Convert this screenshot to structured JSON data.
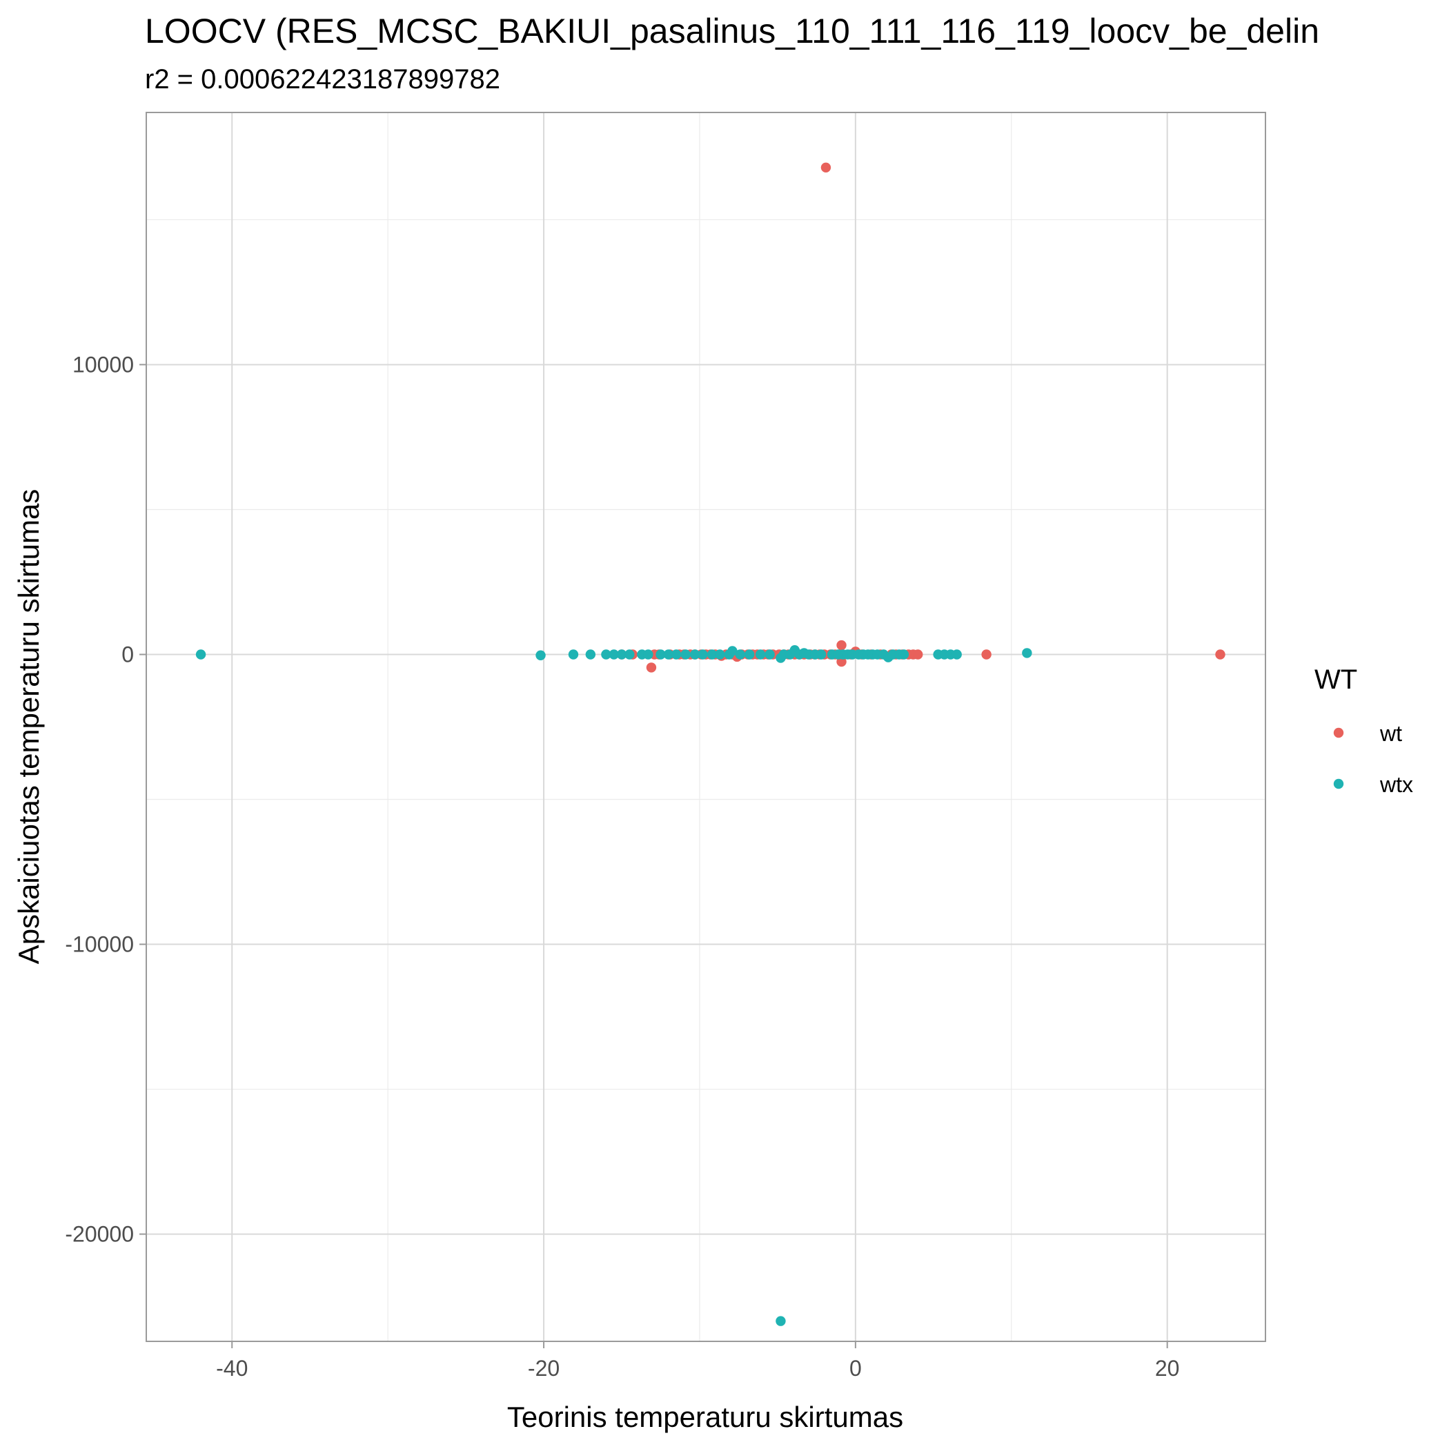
{
  "chart_data": {
    "type": "scatter",
    "title": "LOOCV (RES_MCSC_BAKIUI_pasalinus_110_111_116_119_loocv_be_delin",
    "subtitle": "r2 = 0.000622423187899782",
    "xlabel": "Teorinis temperaturu skirtumas",
    "ylabel": "Apskaiciuotas temperaturu skirtumas",
    "xlim": [
      -45.5,
      26.3
    ],
    "ylim": [
      -23700,
      18700
    ],
    "x_ticks": [
      -40,
      -20,
      0,
      20
    ],
    "y_ticks": [
      -20000,
      -10000,
      0,
      10000
    ],
    "x_tick_labels": [
      "-40",
      "-20",
      "0",
      "20"
    ],
    "y_tick_labels": [
      "-20000",
      "-10000",
      "0",
      "10000"
    ],
    "grid": true,
    "legend": {
      "title": "WT",
      "position": "right"
    },
    "series": [
      {
        "name": "wt",
        "color": "#E8615B",
        "points": [
          [
            -1.9,
            16800
          ],
          [
            23.4,
            0
          ],
          [
            8.4,
            0
          ],
          [
            -13.1,
            -450
          ],
          [
            -0.9,
            320
          ],
          [
            -0.9,
            -250
          ],
          [
            -15,
            0
          ],
          [
            -14.3,
            0
          ],
          [
            -12.9,
            0
          ],
          [
            -12.6,
            0
          ],
          [
            -11.9,
            0
          ],
          [
            -11.3,
            0
          ],
          [
            -11.0,
            0
          ],
          [
            -10.6,
            0
          ],
          [
            -10.3,
            0
          ],
          [
            -9.9,
            0
          ],
          [
            -9.6,
            0
          ],
          [
            -9.3,
            0
          ],
          [
            -9.0,
            0
          ],
          [
            -8.6,
            -50
          ],
          [
            -8.3,
            0
          ],
          [
            -7.9,
            0
          ],
          [
            -7.6,
            -80
          ],
          [
            -7.3,
            0
          ],
          [
            -6.9,
            0
          ],
          [
            -6.6,
            0
          ],
          [
            -6.3,
            0
          ],
          [
            -5.9,
            0
          ],
          [
            -5.6,
            0
          ],
          [
            -5.3,
            0
          ],
          [
            -4.9,
            0
          ],
          [
            -4.6,
            0
          ],
          [
            -4.3,
            0
          ],
          [
            -3.9,
            0
          ],
          [
            -3.6,
            0
          ],
          [
            -3.3,
            0
          ],
          [
            -2.9,
            0
          ],
          [
            -2.6,
            0
          ],
          [
            -2.3,
            0
          ],
          [
            -2.0,
            0
          ],
          [
            -1.6,
            0
          ],
          [
            -1.3,
            0
          ],
          [
            -0.3,
            0
          ],
          [
            0.0,
            100
          ],
          [
            0.4,
            0
          ],
          [
            1.0,
            0
          ],
          [
            1.6,
            0
          ],
          [
            2.3,
            0
          ],
          [
            2.6,
            0
          ],
          [
            3.0,
            0
          ],
          [
            3.4,
            0
          ],
          [
            3.7,
            0
          ],
          [
            4.0,
            0
          ]
        ]
      },
      {
        "name": "wtx",
        "color": "#1FB3B3",
        "points": [
          [
            -42,
            0
          ],
          [
            -4.8,
            -23000
          ],
          [
            11.0,
            50
          ],
          [
            -20.2,
            -30
          ],
          [
            -18.1,
            0
          ],
          [
            -17,
            0
          ],
          [
            -16,
            0
          ],
          [
            -15.5,
            0
          ],
          [
            -15.0,
            0
          ],
          [
            -14.5,
            0
          ],
          [
            -13.7,
            0
          ],
          [
            -13.3,
            0
          ],
          [
            -12.5,
            0
          ],
          [
            -12.0,
            0
          ],
          [
            -11.5,
            0
          ],
          [
            -10.9,
            0
          ],
          [
            -10.3,
            0
          ],
          [
            -9.8,
            0
          ],
          [
            -9.2,
            0
          ],
          [
            -8.7,
            0
          ],
          [
            -8.1,
            0
          ],
          [
            -7.9,
            120
          ],
          [
            -7.4,
            0
          ],
          [
            -6.8,
            0
          ],
          [
            -6.1,
            0
          ],
          [
            -5.5,
            0
          ],
          [
            -4.8,
            -120
          ],
          [
            -4.6,
            0
          ],
          [
            -4.2,
            0
          ],
          [
            -3.9,
            150
          ],
          [
            -3.6,
            0
          ],
          [
            -3.3,
            50
          ],
          [
            -3.0,
            0
          ],
          [
            -2.6,
            0
          ],
          [
            -2.2,
            0
          ],
          [
            -1.5,
            0
          ],
          [
            -1.1,
            0
          ],
          [
            -0.8,
            0
          ],
          [
            -0.5,
            0
          ],
          [
            -0.2,
            0
          ],
          [
            0.2,
            0
          ],
          [
            0.5,
            0
          ],
          [
            0.8,
            0
          ],
          [
            1.1,
            0
          ],
          [
            1.4,
            0
          ],
          [
            1.8,
            0
          ],
          [
            2.1,
            -100
          ],
          [
            2.4,
            0
          ],
          [
            2.8,
            0
          ],
          [
            3.1,
            0
          ],
          [
            5.3,
            0
          ],
          [
            5.7,
            0
          ],
          [
            6.1,
            0
          ],
          [
            6.5,
            0
          ]
        ]
      }
    ]
  }
}
